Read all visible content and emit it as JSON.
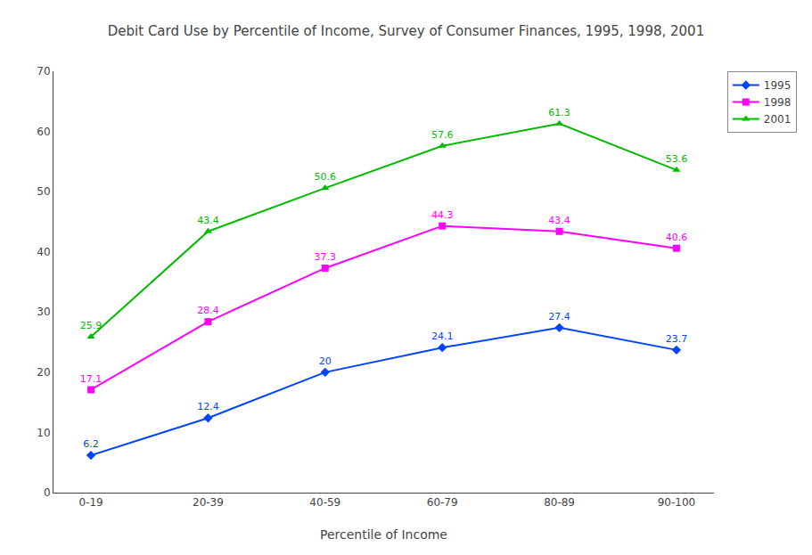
{
  "chart_data": {
    "type": "line",
    "title": "Debit Card Use by Percentile of Income, Survey of Consumer Finances, 1995, 1998, 2001",
    "x_label": "Percentile of Income",
    "categories": [
      "0-19",
      "20-39",
      "40-59",
      "60-79",
      "80-89",
      "90-100"
    ],
    "series": [
      {
        "name": "1995",
        "color": "#0044ff",
        "marker": "diamond",
        "values": [
          6.2,
          12.4,
          20,
          24.1,
          27.4,
          23.7
        ]
      },
      {
        "name": "1998",
        "color": "#ff00ff",
        "marker": "square",
        "values": [
          17.1,
          28.4,
          37.3,
          44.3,
          43.4,
          40.6
        ]
      },
      {
        "name": "2001",
        "color": "#00bb00",
        "marker": "triangle-up",
        "values": [
          25.9,
          43.4,
          50.6,
          57.6,
          61.3,
          53.6
        ]
      }
    ],
    "ylim": [
      0,
      70
    ],
    "yticks": [
      0,
      10,
      20,
      30,
      40,
      50,
      60,
      70
    ],
    "grid": false,
    "legend": "upper right",
    "data_labels": true
  }
}
